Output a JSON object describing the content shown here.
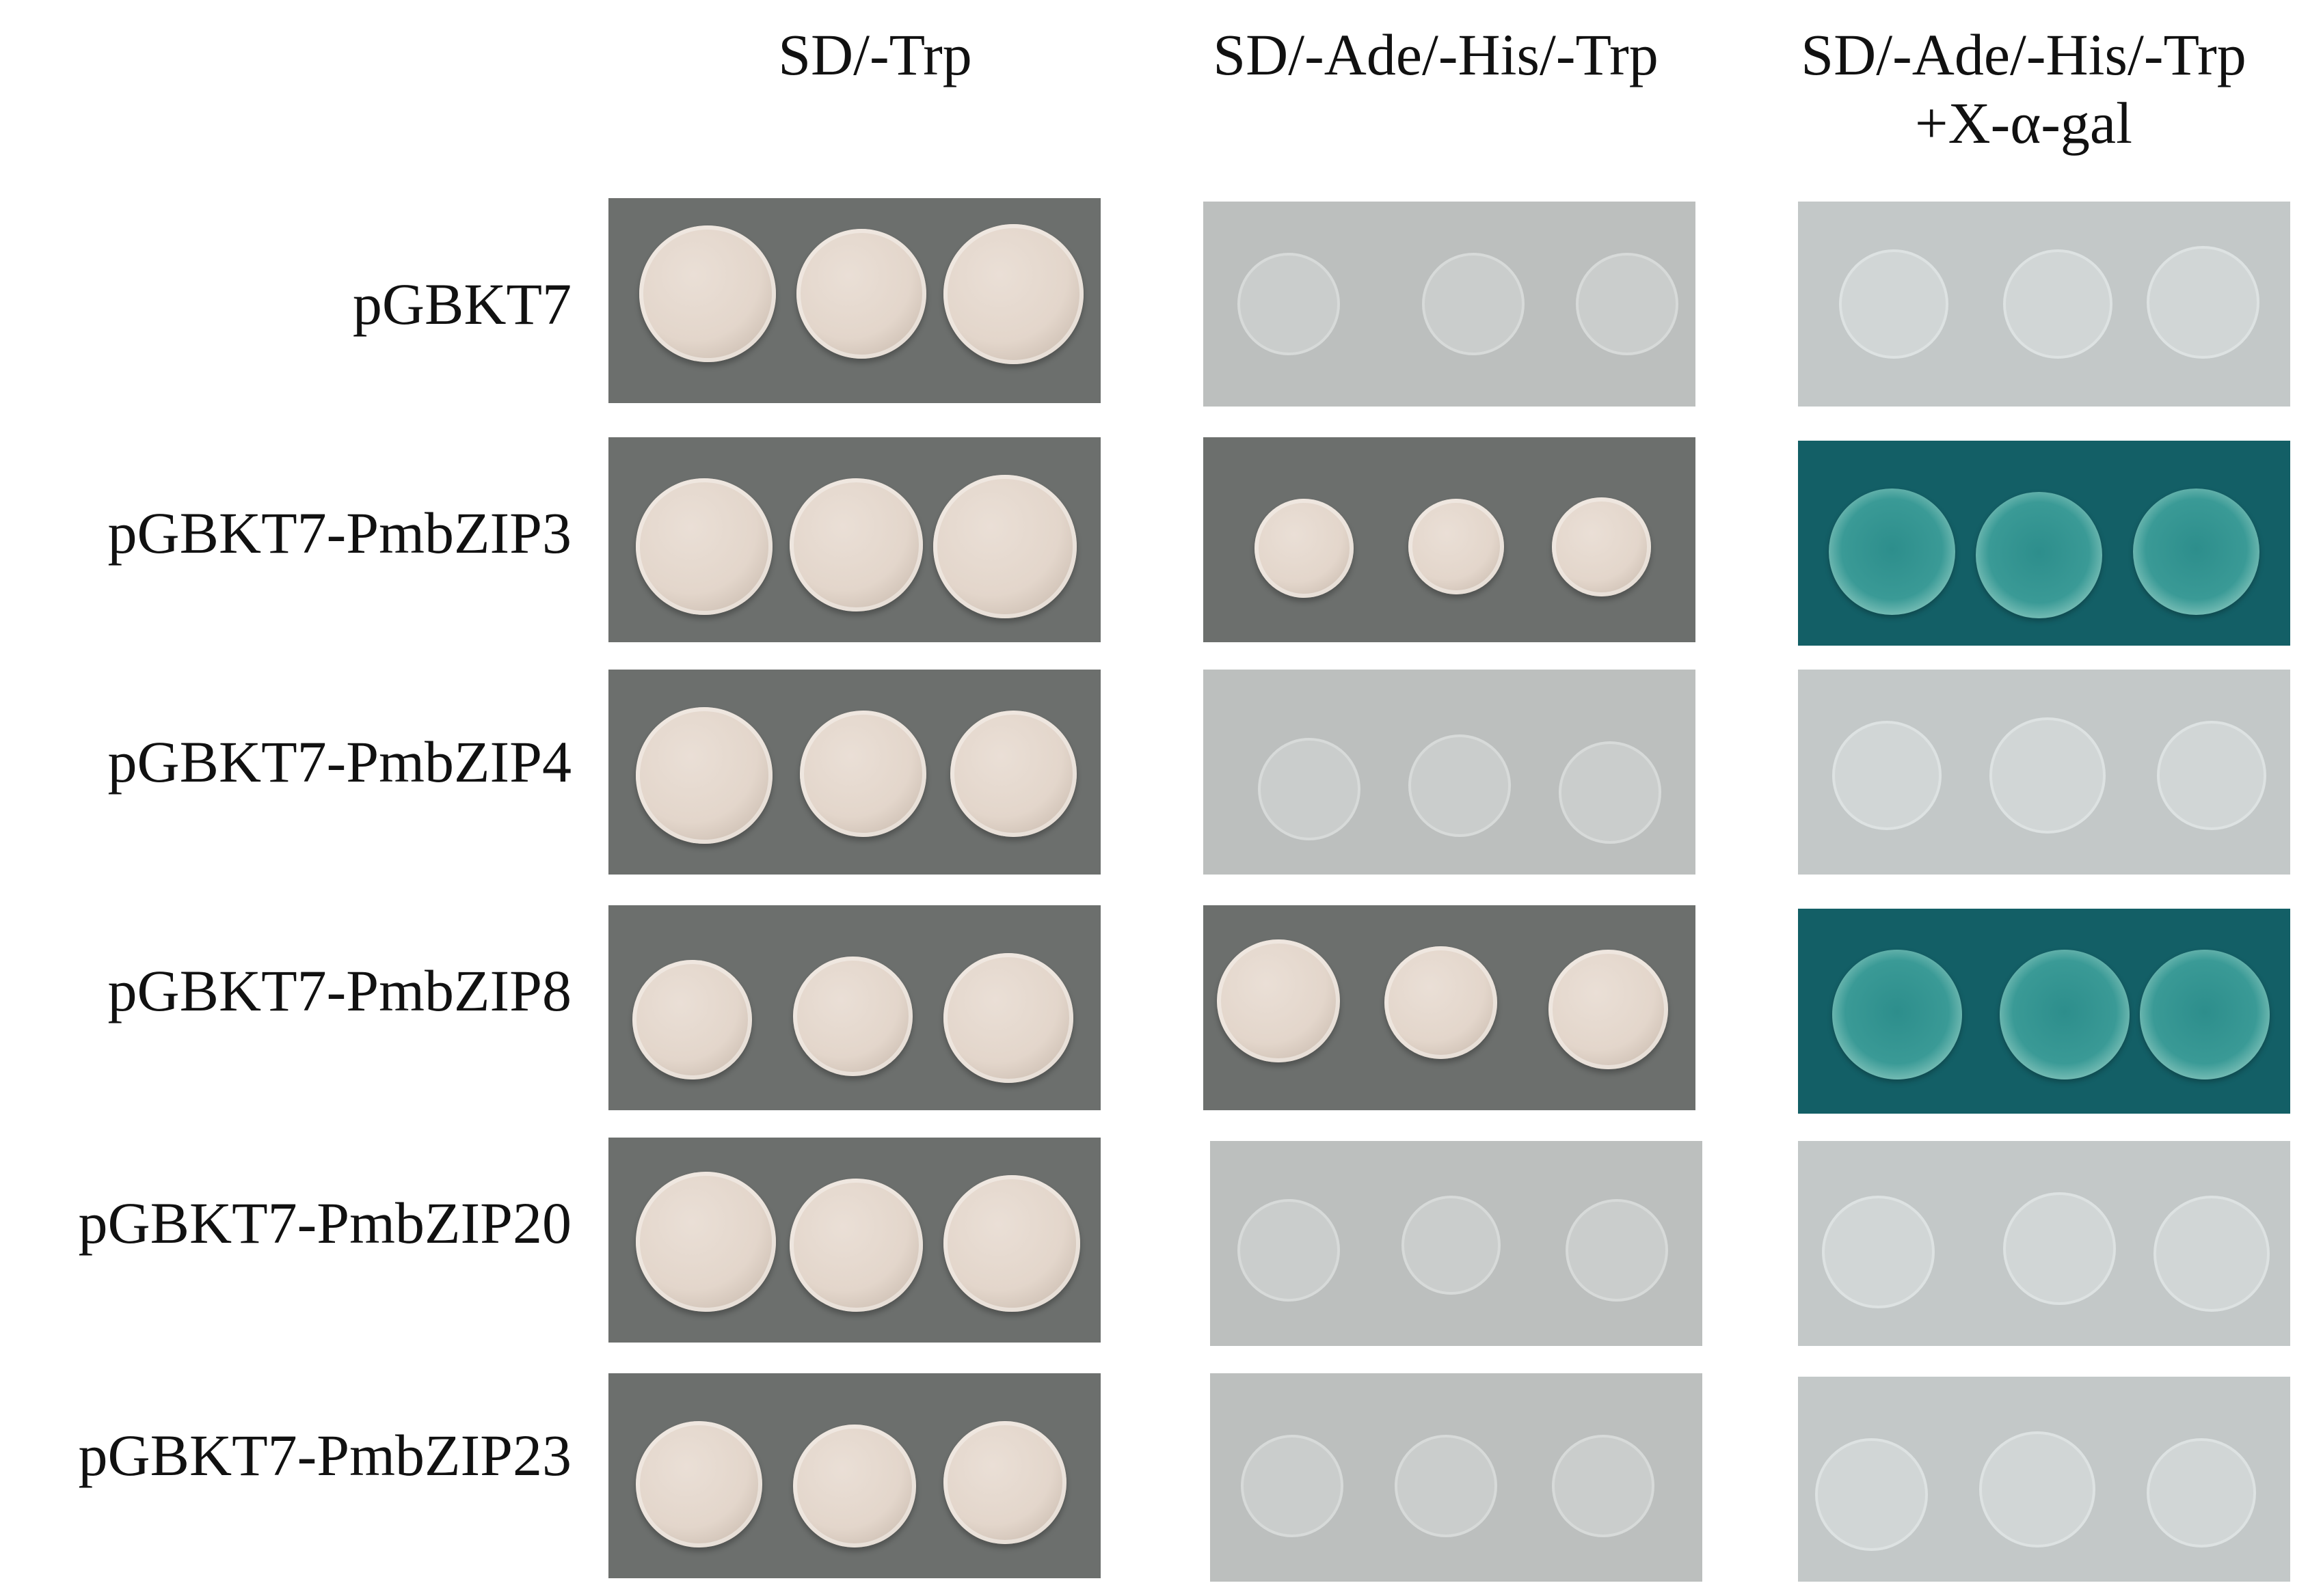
{
  "columns": [
    {
      "header_line1": "SD/-Trp",
      "header_line2": ""
    },
    {
      "header_line1": "SD/-Ade/-His/-Trp",
      "header_line2": ""
    },
    {
      "header_line1": "SD/-Ade/-His/-Trp",
      "header_line2": "+X-α-gal"
    }
  ],
  "rows": [
    {
      "label": "pGBKT7"
    },
    {
      "label": "pGBKT7-PmbZIP3"
    },
    {
      "label": "pGBKT7-PmbZIP4"
    },
    {
      "label": "pGBKT7-PmbZIP8"
    },
    {
      "label": "pGBKT7-PmbZIP20"
    },
    {
      "label": "pGBKT7-PmbZIP23"
    }
  ],
  "colors": {
    "plate_dark": "#6c6f6d",
    "plate_light": "#bcbfbe",
    "plate_blue": "#135f66",
    "colony_cream": "#e3d6cb",
    "colony_blue": "#3a9a96"
  }
}
